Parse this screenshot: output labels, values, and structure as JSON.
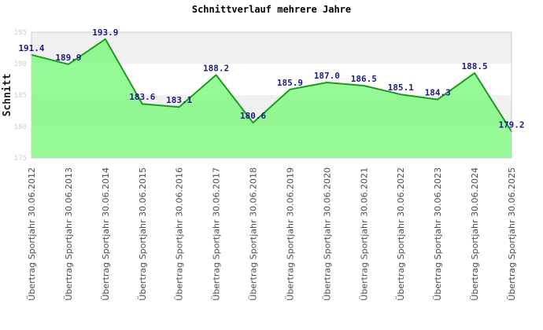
{
  "chart_data": {
    "type": "area",
    "title": "Schnittverlauf mehrere Jahre",
    "ylabel": "Schnitt",
    "xlabel": "",
    "categories": [
      "Übertrag Sportjahr 30.06.2012",
      "Übertrag Sportjahr 30.06.2013",
      "Übertrag Sportjahr 30.06.2014",
      "Übertrag Sportjahr 30.06.2015",
      "Übertrag Sportjahr 30.06.2016",
      "Übertrag Sportjahr 30.06.2017",
      "Übertrag Sportjahr 30.06.2018",
      "Übertrag Sportjahr 30.06.2019",
      "Übertrag Sportjahr 30.06.2020",
      "Übertrag Sportjahr 30.06.2021",
      "Übertrag Sportjahr 30.06.2022",
      "Übertrag Sportjahr 30.06.2023",
      "Übertrag Sportjahr 30.06.2024",
      "Übertrag Sportjahr 30.06.2025"
    ],
    "values": [
      191.4,
      189.9,
      193.9,
      183.6,
      183.1,
      188.2,
      180.6,
      185.9,
      187.0,
      186.5,
      185.1,
      184.3,
      188.5,
      179.2
    ],
    "value_labels": [
      "191.4",
      "189.9",
      "193.9",
      "183.6",
      "183.1",
      "188.2",
      "180.6",
      "185.9",
      "187.0",
      "186.5",
      "185.1",
      "184.3",
      "188.5",
      "179.2"
    ],
    "ylim": [
      175,
      195
    ],
    "yticks": [
      175,
      180,
      185,
      190,
      195
    ],
    "grid": "horizontal-bands",
    "legend": "none",
    "colors": {
      "area_fill": "rgba(110,250,110,0.72)",
      "line": "#16a016",
      "value_label": "#1a1a8a",
      "band_gray": "#f0f0f0",
      "band_white": "#ffffff",
      "plot_border": "#cccccc",
      "ytick_label": "#cfcfcf",
      "xtick_label": "#4d4d4d",
      "title": "#000000"
    }
  }
}
